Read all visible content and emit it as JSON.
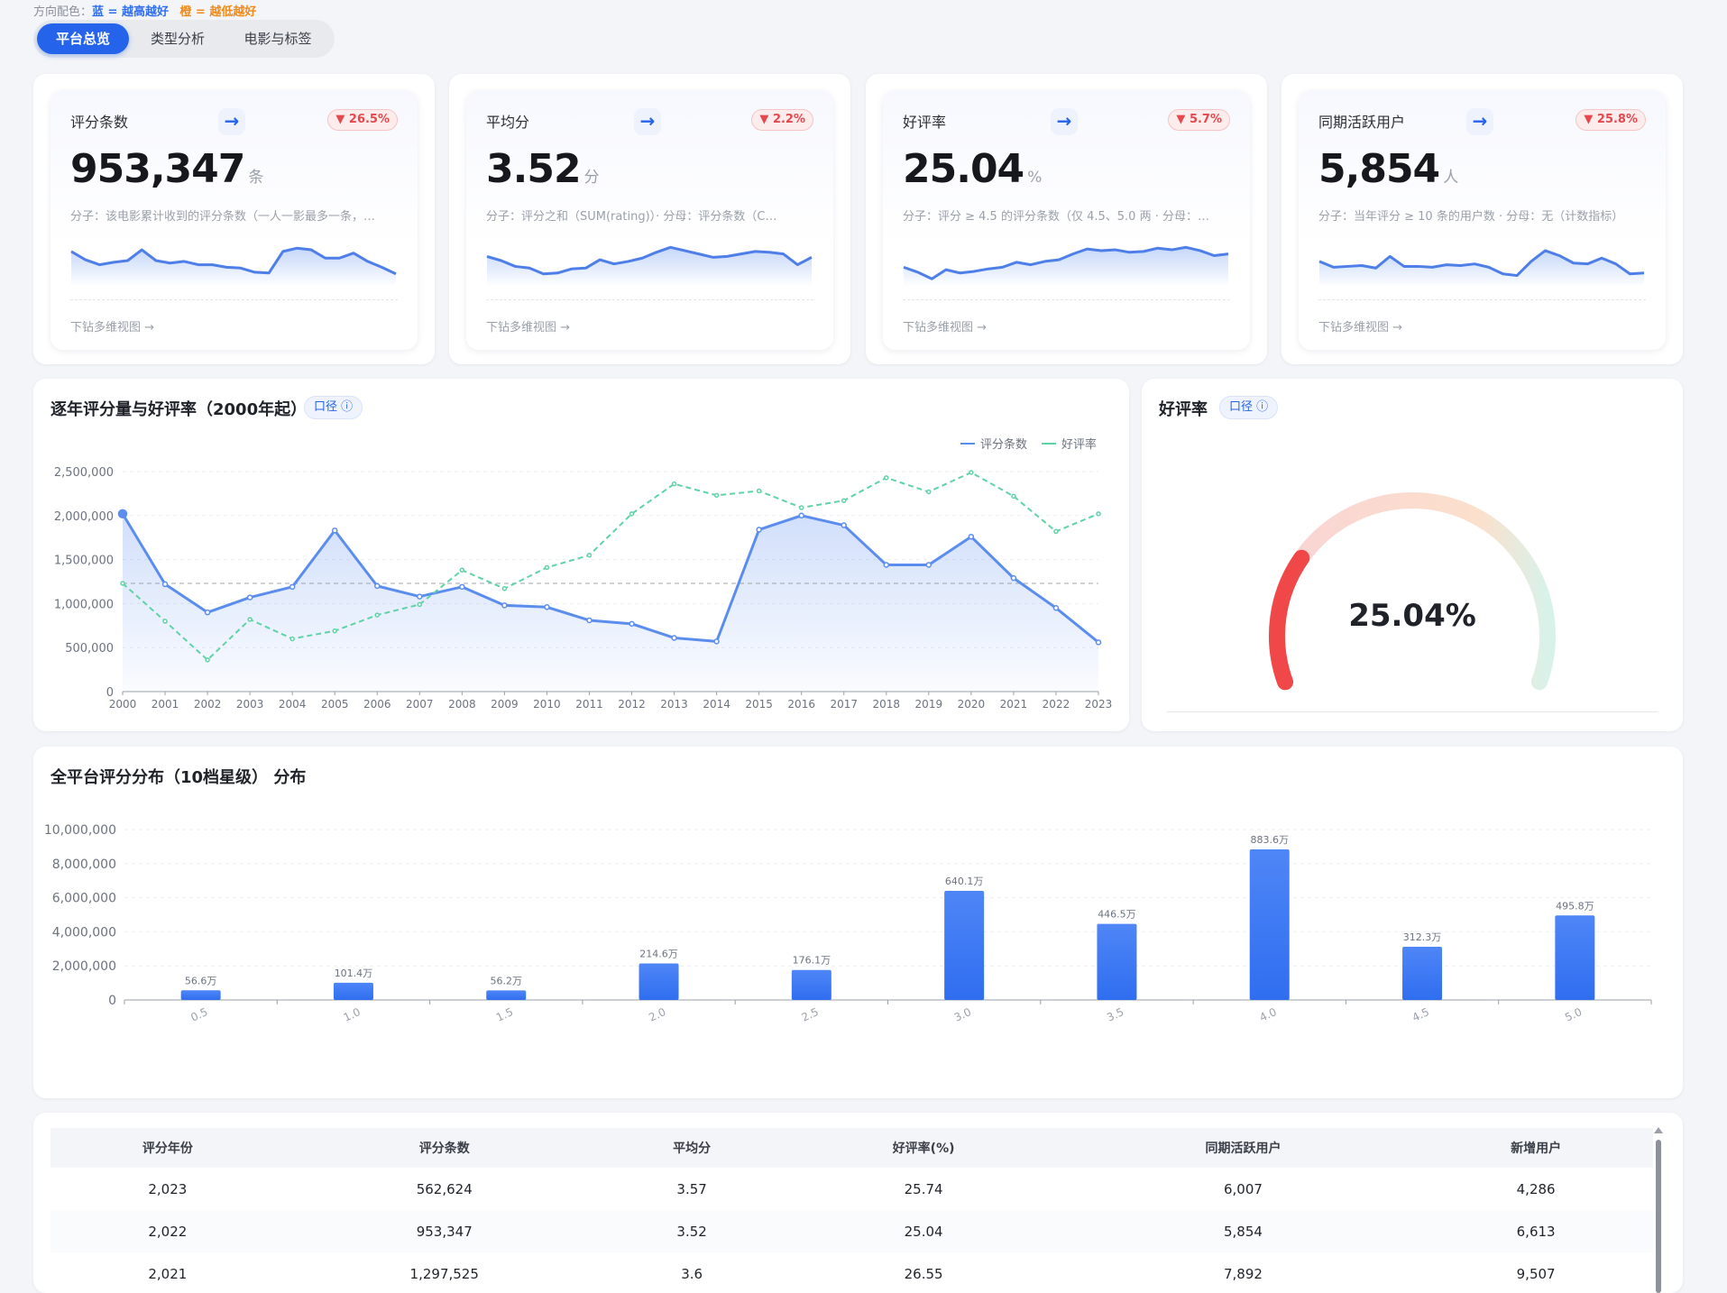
{
  "direction_legend": {
    "prefix": "方向配色：",
    "blue": "蓝 = 越高越好",
    "orange": "橙 = 越低越好"
  },
  "tabs": [
    {
      "label": "平台总览",
      "active": true
    },
    {
      "label": "类型分析",
      "active": false
    },
    {
      "label": "电影与标签",
      "active": false
    }
  ],
  "kpis": [
    {
      "title": "评分条数",
      "arrow": "→",
      "badge": "▼ 26.5%",
      "value": "953,347",
      "unit": "条",
      "desc": "分子：该电影累计收到的评分条数（一人一影最多一条，…",
      "link": "下钻多维视图 →",
      "spark": [
        0.72,
        0.52,
        0.4,
        0.46,
        0.5,
        0.76,
        0.5,
        0.44,
        0.48,
        0.4,
        0.4,
        0.34,
        0.32,
        0.22,
        0.2,
        0.72,
        0.8,
        0.76,
        0.56,
        0.56,
        0.68,
        0.48,
        0.34,
        0.18
      ]
    },
    {
      "title": "平均分",
      "arrow": "→",
      "badge": "▼ 2.2%",
      "value": "3.52",
      "unit": "分",
      "desc": "分子：评分之和（SUM(rating)）· 分母：评分条数（C…",
      "link": "下钻多维视图 →",
      "spark": [
        0.6,
        0.5,
        0.36,
        0.32,
        0.18,
        0.2,
        0.3,
        0.32,
        0.52,
        0.42,
        0.48,
        0.56,
        0.7,
        0.82,
        0.74,
        0.66,
        0.58,
        0.6,
        0.66,
        0.72,
        0.7,
        0.66,
        0.4,
        0.58
      ]
    },
    {
      "title": "好评率",
      "arrow": "→",
      "badge": "▼ 5.7%",
      "value": "25.04",
      "unit": "%",
      "desc": "分子：评分 ≥ 4.5 的评分条数（仅 4.5、5.0 两 · 分母：…",
      "link": "下钻多维视图 →",
      "spark": [
        0.34,
        0.22,
        0.06,
        0.28,
        0.2,
        0.24,
        0.3,
        0.34,
        0.46,
        0.4,
        0.48,
        0.52,
        0.66,
        0.78,
        0.74,
        0.76,
        0.7,
        0.72,
        0.8,
        0.76,
        0.82,
        0.74,
        0.62,
        0.66
      ]
    },
    {
      "title": "同期活跃用户",
      "arrow": "→",
      "badge": "▼ 25.8%",
      "value": "5,854",
      "unit": "人",
      "desc": "分子：当年评分 ≥ 10 条的用户数 · 分母：无（计数指标）",
      "link": "下钻多维视图 →",
      "spark": [
        0.48,
        0.34,
        0.36,
        0.38,
        0.32,
        0.6,
        0.36,
        0.36,
        0.34,
        0.4,
        0.38,
        0.42,
        0.34,
        0.18,
        0.14,
        0.48,
        0.74,
        0.62,
        0.44,
        0.42,
        0.56,
        0.42,
        0.18,
        0.2
      ]
    }
  ],
  "trend": {
    "title": "逐年评分量与好评率（2000年起）",
    "pill": "口径 ⓘ",
    "chart_data": {
      "type": "line",
      "x": [
        "2000",
        "2001",
        "2002",
        "2003",
        "2004",
        "2005",
        "2006",
        "2007",
        "2008",
        "2009",
        "2010",
        "2011",
        "2012",
        "2013",
        "2014",
        "2015",
        "2016",
        "2017",
        "2018",
        "2019",
        "2020",
        "2021",
        "2022",
        "2023"
      ],
      "series": [
        {
          "name": "评分条数",
          "values": [
            2020000,
            1220000,
            900000,
            1070000,
            1190000,
            1830000,
            1200000,
            1080000,
            1190000,
            980000,
            960000,
            810000,
            770000,
            610000,
            570000,
            1840000,
            2000000,
            1890000,
            1440000,
            1440000,
            1760000,
            1290000,
            950000,
            560000
          ]
        },
        {
          "name": "好评率",
          "values": [
            1230000,
            800000,
            360000,
            820000,
            600000,
            690000,
            870000,
            990000,
            1380000,
            1170000,
            1410000,
            1550000,
            2020000,
            2360000,
            2230000,
            2280000,
            2090000,
            2170000,
            2430000,
            2270000,
            2490000,
            2220000,
            1820000,
            2020000
          ]
        }
      ],
      "reference_line": 1230000,
      "ylim": [
        0,
        2500000
      ],
      "yticks": [
        "0",
        "500,000",
        "1,000,000",
        "1,500,000",
        "2,000,000",
        "2,500,000"
      ],
      "legend": "top-right"
    }
  },
  "gauge": {
    "title": "好评率",
    "pill": "口径 ⓘ",
    "value_text": "25.04%",
    "value": 25.04,
    "max": 100
  },
  "dist": {
    "title": "全平台评分分布（10档星级） 分布",
    "chart_data": {
      "type": "bar",
      "categories": [
        "0.5",
        "1.0",
        "1.5",
        "2.0",
        "2.5",
        "3.0",
        "3.5",
        "4.0",
        "4.5",
        "5.0"
      ],
      "values": [
        566000,
        1014000,
        562000,
        2146000,
        1761000,
        6401000,
        4465000,
        8836000,
        3123000,
        4958000
      ],
      "labels": [
        "56.6万",
        "101.4万",
        "56.2万",
        "214.6万",
        "176.1万",
        "640.1万",
        "446.5万",
        "883.6万",
        "312.3万",
        "495.8万"
      ],
      "ylim": [
        0,
        10000000
      ],
      "yticks": [
        "0",
        "2,000,000",
        "4,000,000",
        "6,000,000",
        "8,000,000",
        "10,000,000"
      ]
    }
  },
  "table": {
    "headers": [
      "评分年份",
      "评分条数",
      "平均分",
      "好评率(%)",
      "同期活跃用户",
      "新增用户"
    ],
    "rows": [
      [
        "2,023",
        "562,624",
        "3.57",
        "25.74",
        "6,007",
        "4,286"
      ],
      [
        "2,022",
        "953,347",
        "3.52",
        "25.04",
        "5,854",
        "6,613"
      ],
      [
        "2,021",
        "1,297,525",
        "3.6",
        "26.55",
        "7,892",
        "9,507"
      ]
    ]
  },
  "colors": {
    "accent": "#2563eb",
    "line_blue": "#5b8def",
    "line_green": "#5fd3a6",
    "badge_red": "#e5484d",
    "gauge_red": "#f04848"
  }
}
